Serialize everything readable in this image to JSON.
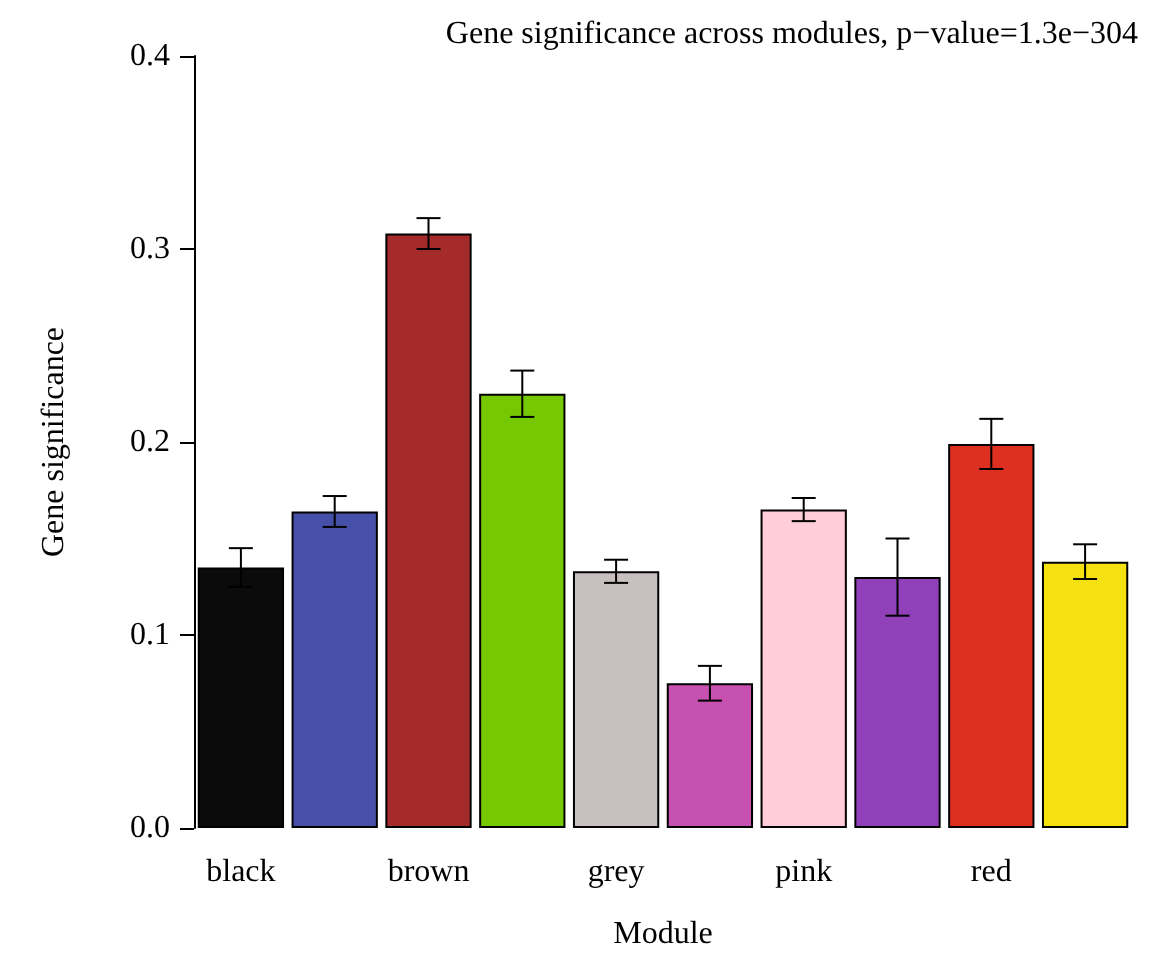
{
  "chart_data": {
    "type": "bar",
    "title": "Gene significance across modules, p−value=1.3e−304",
    "xlabel": "Module",
    "ylabel": "Gene significance",
    "categories": [
      "black",
      null,
      "brown",
      null,
      "grey",
      null,
      "pink",
      null,
      "red",
      null
    ],
    "values": [
      0.135,
      0.164,
      0.308,
      0.225,
      0.133,
      0.075,
      0.165,
      0.13,
      0.199,
      0.138
    ],
    "colors": [
      "#0b0b0b",
      "#4650a8",
      "#a52a2a",
      "#76c800",
      "#c8c0be",
      "#c751b0",
      "#ffcdd9",
      "#9040b8",
      "#de3020",
      "#f5e010"
    ],
    "errors": [
      0.01,
      0.008,
      0.008,
      0.012,
      0.006,
      0.009,
      0.006,
      0.02,
      0.013,
      0.009
    ],
    "ylim": [
      0,
      0.4
    ],
    "yticks": [
      {
        "value": 0,
        "label": "0.0"
      },
      {
        "value": 0.1,
        "label": "0.1"
      },
      {
        "value": 0.2,
        "label": "0.2"
      },
      {
        "value": 0.3,
        "label": "0.3"
      },
      {
        "value": 0.4,
        "label": "0.4"
      }
    ],
    "grid": false
  }
}
